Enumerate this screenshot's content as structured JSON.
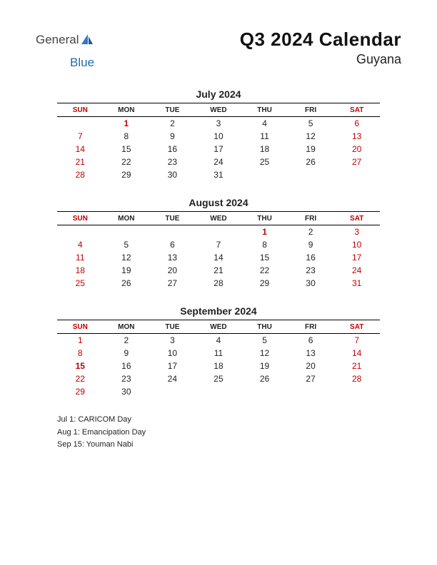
{
  "header": {
    "logo_general": "General",
    "logo_blue": "Blue",
    "title": "Q3 2024 Calendar",
    "subtitle": "Guyana"
  },
  "day_headers": [
    "SUN",
    "MON",
    "TUE",
    "WED",
    "THU",
    "FRI",
    "SAT"
  ],
  "months": [
    {
      "title": "July 2024",
      "weeks": [
        [
          "",
          "1",
          "2",
          "3",
          "4",
          "5",
          "6"
        ],
        [
          "7",
          "8",
          "9",
          "10",
          "11",
          "12",
          "13"
        ],
        [
          "14",
          "15",
          "16",
          "17",
          "18",
          "19",
          "20"
        ],
        [
          "21",
          "22",
          "23",
          "24",
          "25",
          "26",
          "27"
        ],
        [
          "28",
          "29",
          "30",
          "31",
          "",
          "",
          ""
        ]
      ],
      "holiday_idx": [
        [
          0,
          1
        ]
      ]
    },
    {
      "title": "August 2024",
      "weeks": [
        [
          "",
          "",
          "",
          "",
          "1",
          "2",
          "3"
        ],
        [
          "4",
          "5",
          "6",
          "7",
          "8",
          "9",
          "10"
        ],
        [
          "11",
          "12",
          "13",
          "14",
          "15",
          "16",
          "17"
        ],
        [
          "18",
          "19",
          "20",
          "21",
          "22",
          "23",
          "24"
        ],
        [
          "25",
          "26",
          "27",
          "28",
          "29",
          "30",
          "31"
        ]
      ],
      "holiday_idx": [
        [
          0,
          4
        ]
      ]
    },
    {
      "title": "September 2024",
      "weeks": [
        [
          "1",
          "2",
          "3",
          "4",
          "5",
          "6",
          "7"
        ],
        [
          "8",
          "9",
          "10",
          "11",
          "12",
          "13",
          "14"
        ],
        [
          "15",
          "16",
          "17",
          "18",
          "19",
          "20",
          "21"
        ],
        [
          "22",
          "23",
          "24",
          "25",
          "26",
          "27",
          "28"
        ],
        [
          "29",
          "30",
          "",
          "",
          "",
          "",
          ""
        ]
      ],
      "holiday_idx": [
        [
          2,
          0
        ]
      ]
    }
  ],
  "holidays": [
    "Jul 1: CARICOM Day",
    "Aug 1: Emancipation Day",
    "Sep 15: Youman Nabi"
  ],
  "colors": {
    "weekend": "#c00000",
    "text": "#222222",
    "logo_blue": "#2169b3",
    "rule": "#000000",
    "background": "#ffffff"
  }
}
